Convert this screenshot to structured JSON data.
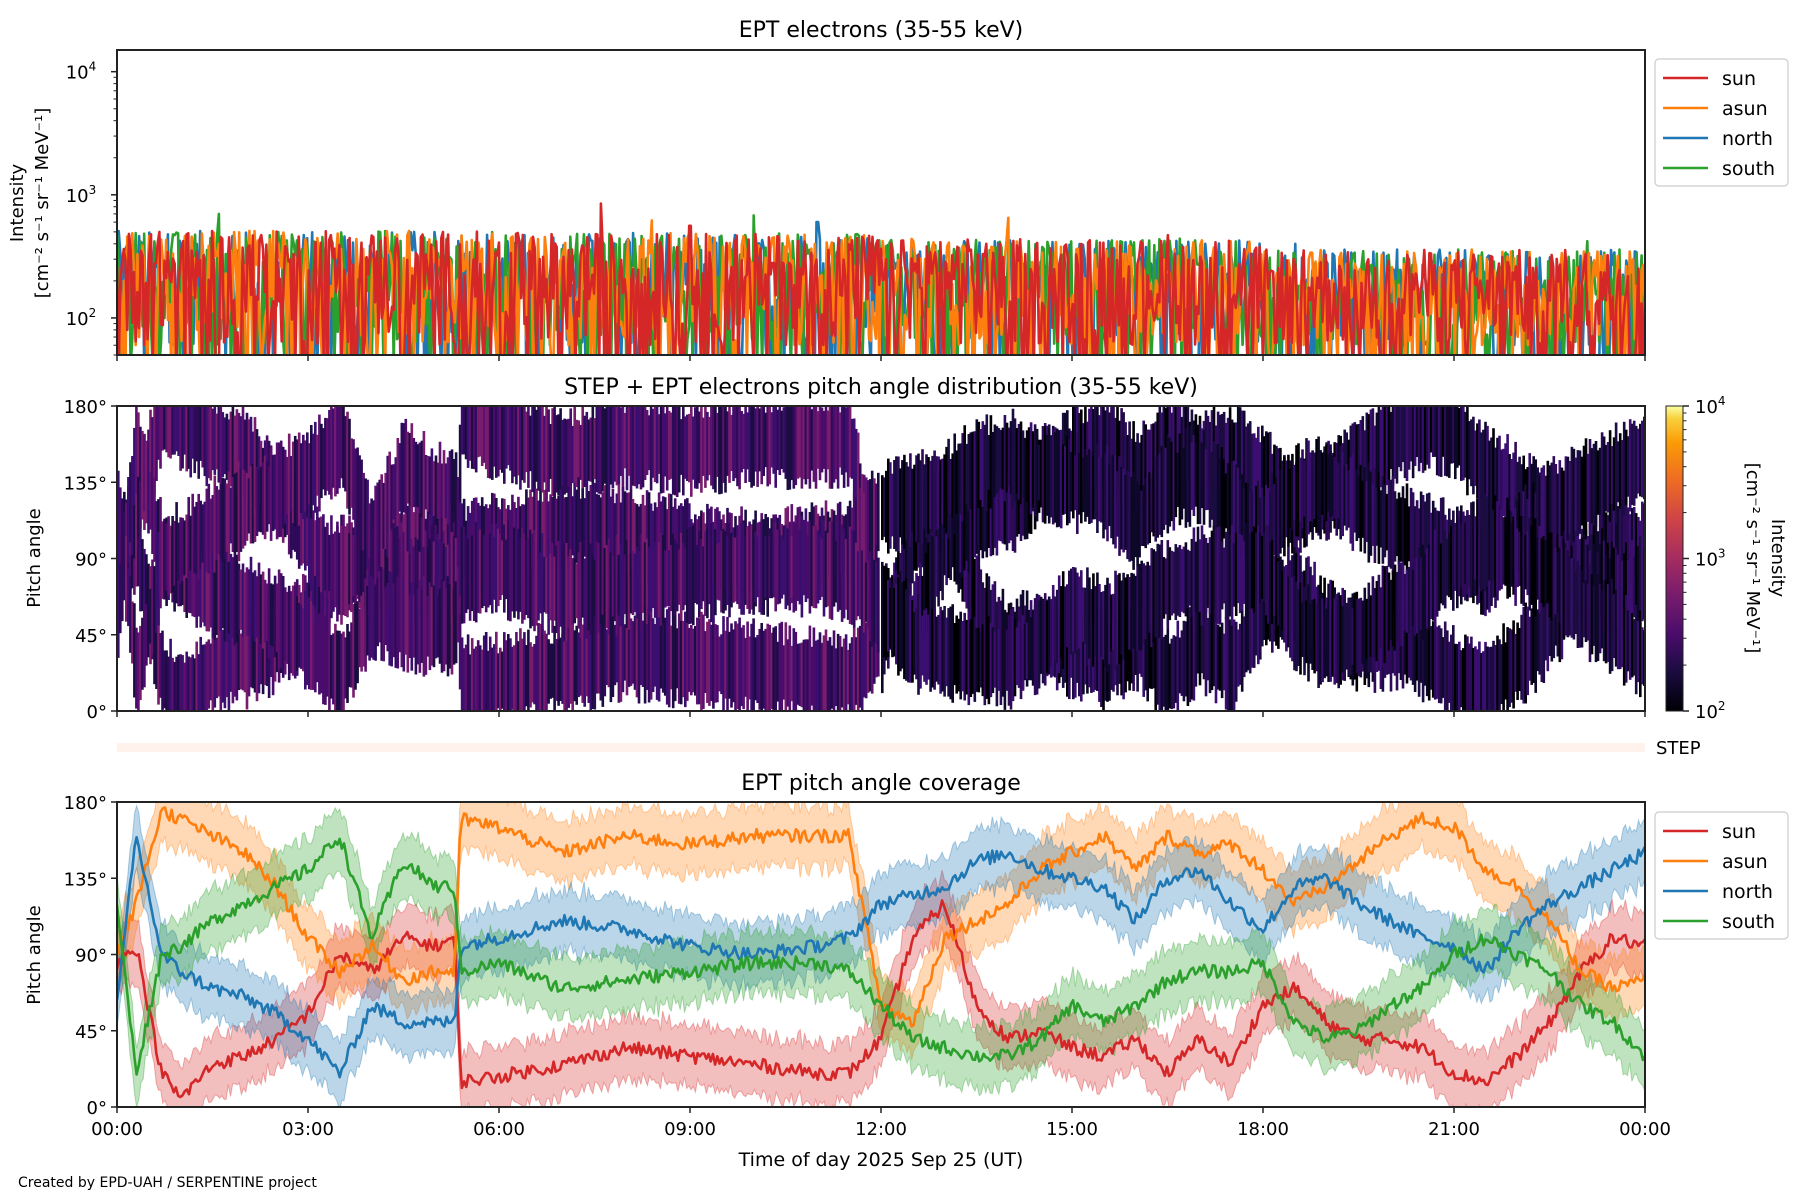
{
  "chart_data": [
    {
      "type": "line",
      "title": "EPT electrons (35-55 keV)",
      "xlabel": "",
      "ylabel": "Intensity",
      "ylabel_units": "[cm⁻² s⁻¹ sr⁻¹ MeV⁻¹]",
      "yscale": "log",
      "ylim": [
        50,
        15000
      ],
      "y_ticks": [
        {
          "value": 100,
          "label": "10",
          "exp": "2"
        },
        {
          "value": 1000,
          "label": "10",
          "exp": "3"
        },
        {
          "value": 10000,
          "label": "10",
          "exp": "4"
        }
      ],
      "xlim_hours": [
        0,
        24
      ],
      "legend": "outside-right-top",
      "series": [
        {
          "name": "sun",
          "color": "#d62728",
          "typical": 150,
          "peaks": [
            {
              "t": 7.6,
              "v": 850
            },
            {
              "t": 9.0,
              "v": 560
            },
            {
              "t": 16.5,
              "v": 470
            }
          ]
        },
        {
          "name": "asun",
          "color": "#ff7f0e",
          "typical": 140,
          "peaks": [
            {
              "t": 8.4,
              "v": 620
            },
            {
              "t": 14.0,
              "v": 650
            }
          ]
        },
        {
          "name": "north",
          "color": "#1f77b4",
          "typical": 130,
          "peaks": [
            {
              "t": 11.0,
              "v": 600
            },
            {
              "t": 18.5,
              "v": 400
            }
          ]
        },
        {
          "name": "south",
          "color": "#2ca02c",
          "typical": 150,
          "peaks": [
            {
              "t": 1.6,
              "v": 700
            },
            {
              "t": 10.0,
              "v": 680
            },
            {
              "t": 23.1,
              "v": 420
            }
          ]
        }
      ],
      "trend": {
        "hours": [
          0,
          6,
          12,
          18,
          24
        ],
        "envelope_max": [
          450,
          430,
          380,
          300,
          280
        ]
      }
    },
    {
      "type": "heatmap",
      "title": "STEP + EPT electrons pitch angle distribution (35-55 keV)",
      "ylabel": "Pitch angle",
      "ylim": [
        0,
        180
      ],
      "y_ticks": [
        "0°",
        "45°",
        "90°",
        "135°",
        "180°"
      ],
      "y_tick_values": [
        0,
        45,
        90,
        135,
        180
      ],
      "colormap": "inferno",
      "colorbar": {
        "label": "Intensity",
        "units": "[cm⁻² s⁻¹ sr⁻¹ MeV⁻¹]",
        "scale": "log",
        "range": [
          100,
          10000
        ],
        "ticks": [
          {
            "value": 100,
            "label": "10",
            "exp": "2"
          },
          {
            "value": 1000,
            "label": "10",
            "exp": "3"
          },
          {
            "value": 10000,
            "label": "10",
            "exp": "4"
          }
        ]
      },
      "step_label": "STEP"
    },
    {
      "type": "area",
      "title": "EPT pitch angle coverage",
      "xlabel": "Time of day 2025 Sep 25 (UT)",
      "ylabel": "Pitch angle",
      "ylim": [
        0,
        180
      ],
      "y_ticks": [
        "0°",
        "45°",
        "90°",
        "135°",
        "180°"
      ],
      "y_tick_values": [
        0,
        45,
        90,
        135,
        180
      ],
      "x_ticks": [
        "00:00",
        "03:00",
        "06:00",
        "09:00",
        "12:00",
        "15:00",
        "18:00",
        "21:00",
        "00:00"
      ],
      "x_tick_hours": [
        0,
        3,
        6,
        9,
        12,
        15,
        18,
        21,
        24
      ],
      "legend": "outside-right-top",
      "band_halfwidth_deg": 18,
      "x_hours": [
        0,
        0.3,
        0.7,
        1,
        1.5,
        2,
        2.5,
        3,
        3.5,
        4,
        4.5,
        5,
        5.3,
        5.4,
        6,
        7,
        8,
        9,
        10,
        11,
        11.5,
        12,
        12.5,
        13,
        13.5,
        14,
        14.5,
        15,
        15.5,
        16,
        16.5,
        17,
        17.5,
        18,
        18.5,
        19,
        19.5,
        20,
        20.5,
        21,
        21.5,
        22,
        22.5,
        23,
        23.5,
        24
      ],
      "series": [
        {
          "name": "sun",
          "color": "#d62728",
          "values": [
            85,
            95,
            20,
            5,
            25,
            30,
            40,
            55,
            90,
            80,
            100,
            95,
            100,
            15,
            18,
            25,
            35,
            30,
            25,
            20,
            20,
            40,
            100,
            120,
            60,
            40,
            45,
            35,
            30,
            40,
            20,
            40,
            25,
            60,
            70,
            50,
            40,
            40,
            35,
            20,
            15,
            30,
            50,
            80,
            100,
            95
          ]
        },
        {
          "name": "asun",
          "color": "#ff7f0e",
          "values": [
            90,
            120,
            175,
            170,
            160,
            150,
            130,
            100,
            80,
            95,
            75,
            80,
            80,
            170,
            165,
            150,
            160,
            155,
            160,
            160,
            160,
            60,
            50,
            100,
            110,
            120,
            140,
            150,
            160,
            140,
            160,
            150,
            155,
            140,
            120,
            130,
            145,
            160,
            170,
            165,
            140,
            130,
            110,
            80,
            70,
            75
          ]
        },
        {
          "name": "north",
          "color": "#1f77b4",
          "values": [
            60,
            160,
            90,
            80,
            70,
            65,
            55,
            40,
            20,
            60,
            50,
            50,
            50,
            95,
            100,
            110,
            105,
            95,
            90,
            95,
            100,
            120,
            125,
            130,
            145,
            150,
            140,
            135,
            130,
            110,
            135,
            140,
            120,
            105,
            130,
            135,
            120,
            110,
            100,
            95,
            80,
            105,
            120,
            130,
            140,
            150
          ]
        },
        {
          "name": "south",
          "color": "#2ca02c",
          "values": [
            120,
            20,
            90,
            95,
            110,
            120,
            130,
            140,
            160,
            100,
            145,
            130,
            130,
            80,
            85,
            70,
            75,
            80,
            85,
            85,
            80,
            60,
            40,
            35,
            30,
            30,
            40,
            60,
            50,
            60,
            75,
            80,
            80,
            85,
            50,
            40,
            45,
            60,
            70,
            90,
            100,
            90,
            80,
            60,
            50,
            30
          ]
        }
      ]
    }
  ],
  "footer": "Created by EPD-UAH / SERPENTINE project"
}
